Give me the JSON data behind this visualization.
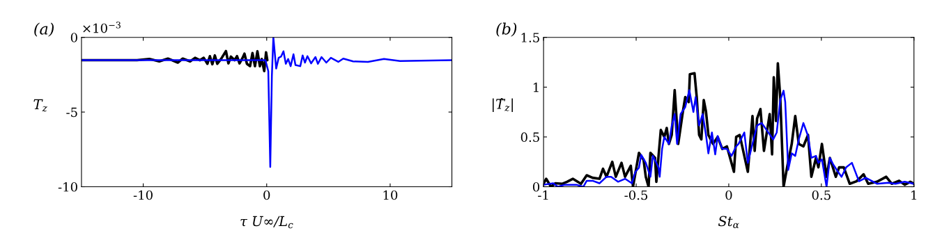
{
  "chart_data": [
    {
      "type": "line",
      "title": "(a)",
      "xlabel": "τ U∞/L$_{c}$",
      "ylabel": "T$_{z}$",
      "annotations": [
        "×10$^{−3}$"
      ],
      "xlim": [
        -15,
        15
      ],
      "xticks": [
        -10,
        0,
        10
      ],
      "ylim": [
        -10,
        0
      ],
      "yticks": [
        -10,
        -5,
        0
      ],
      "grid": false,
      "legend": false,
      "series": [
        {
          "color": "#000000",
          "x": [
            -15,
            -10.5,
            -9.5,
            -8.7,
            -8.0,
            -7.2,
            -6.8,
            -6.2,
            -5.8,
            -5.4,
            -5.1,
            -4.8,
            -4.6,
            -4.4,
            -4.2,
            -4.0,
            -3.7,
            -3.3,
            -3.1,
            -2.9,
            -2.6,
            -2.4,
            -2.2,
            -1.95,
            -1.8,
            -1.6,
            -1.35,
            -1.15,
            -0.95,
            -0.75,
            -0.55,
            -0.4,
            -0.2,
            -0.05,
            0.05
          ],
          "values": [
            -1.53,
            -1.53,
            -1.45,
            -1.61,
            -1.42,
            -1.69,
            -1.42,
            -1.61,
            -1.37,
            -1.53,
            -1.37,
            -1.77,
            -1.26,
            -1.8,
            -1.21,
            -1.77,
            -1.45,
            -0.92,
            -1.74,
            -1.29,
            -1.53,
            -1.26,
            -1.74,
            -1.37,
            -1.09,
            -1.77,
            -1.93,
            -1.05,
            -1.93,
            -0.93,
            -1.93,
            -1.45,
            -2.26,
            -1.0,
            -1.53
          ]
        },
        {
          "color": "#0000ff",
          "x": [
            -15,
            -0.1,
            0.13,
            0.29,
            0.42,
            0.54,
            0.77,
            0.97,
            1.16,
            1.36,
            1.55,
            1.74,
            1.94,
            2.17,
            2.33,
            2.72,
            2.91,
            3.1,
            3.3,
            3.6,
            3.95,
            4.15,
            4.44,
            4.83,
            5.2,
            5.8,
            6.2,
            7.0,
            8.2,
            9.5,
            10.8,
            15
          ],
          "values": [
            -1.53,
            -1.53,
            -2.26,
            -8.67,
            -2.58,
            0,
            -2.09,
            -1.37,
            -1.29,
            -0.93,
            -1.77,
            -1.45,
            -1.93,
            -1.13,
            -1.85,
            -1.93,
            -1.21,
            -1.69,
            -1.26,
            -1.74,
            -1.32,
            -1.77,
            -1.32,
            -1.69,
            -1.37,
            -1.64,
            -1.42,
            -1.61,
            -1.64,
            -1.45,
            -1.58,
            -1.53
          ]
        }
      ]
    },
    {
      "type": "line",
      "title": "(b)",
      "xlabel": "St$_{α}$",
      "ylabel": "|T̂$_{z}$|",
      "xlim": [
        -1,
        1
      ],
      "xticks": [
        -1,
        -0.5,
        0,
        0.5,
        1
      ],
      "ylim": [
        0,
        1.5
      ],
      "yticks": [
        0,
        0.5,
        1,
        1.5
      ],
      "grid": false,
      "legend": false,
      "series": [
        {
          "color": "#000000",
          "x": [
            -1.0,
            -0.986,
            -0.96,
            -0.936,
            -0.898,
            -0.873,
            -0.842,
            -0.798,
            -0.767,
            -0.735,
            -0.698,
            -0.679,
            -0.66,
            -0.629,
            -0.61,
            -0.579,
            -0.56,
            -0.529,
            -0.517,
            -0.485,
            -0.46,
            -0.448,
            -0.433,
            -0.423,
            -0.398,
            -0.391,
            -0.367,
            -0.348,
            -0.335,
            -0.323,
            -0.308,
            -0.292,
            -0.273,
            -0.248,
            -0.235,
            -0.216,
            -0.21,
            -0.185,
            -0.173,
            -0.16,
            -0.148,
            -0.135,
            -0.123,
            -0.11,
            -0.085,
            -0.06,
            -0.035,
            -0.01,
            0.028,
            0.04,
            0.059,
            0.078,
            0.103,
            0.128,
            0.14,
            0.153,
            0.171,
            0.19,
            0.221,
            0.234,
            0.243,
            0.255,
            0.265,
            0.278,
            0.296,
            0.315,
            0.34,
            0.359,
            0.378,
            0.403,
            0.428,
            0.446,
            0.471,
            0.484,
            0.503,
            0.528,
            0.546,
            0.578,
            0.596,
            0.621,
            0.653,
            0.69,
            0.728,
            0.753,
            0.8,
            0.85,
            0.88,
            0.92,
            0.95,
            0.98,
            1.0
          ],
          "values": [
            0.03,
            0.08,
            0.0,
            0.035,
            0.03,
            0.05,
            0.08,
            0.03,
            0.115,
            0.09,
            0.08,
            0.18,
            0.1,
            0.25,
            0.1,
            0.24,
            0.1,
            0.21,
            0.0,
            0.34,
            0.27,
            0.1,
            0.0,
            0.34,
            0.29,
            0.05,
            0.57,
            0.5,
            0.59,
            0.43,
            0.52,
            0.97,
            0.43,
            0.75,
            0.9,
            0.85,
            1.13,
            1.14,
            0.9,
            0.52,
            0.475,
            0.87,
            0.755,
            0.52,
            0.43,
            0.5,
            0.38,
            0.405,
            0.15,
            0.5,
            0.52,
            0.36,
            0.15,
            0.71,
            0.36,
            0.685,
            0.78,
            0.36,
            0.73,
            0.325,
            1.1,
            0.66,
            1.24,
            0.9,
            0.0,
            0.195,
            0.43,
            0.71,
            0.43,
            0.405,
            0.52,
            0.1,
            0.29,
            0.195,
            0.43,
            0.1,
            0.29,
            0.1,
            0.195,
            0.195,
            0.03,
            0.055,
            0.125,
            0.03,
            0.05,
            0.1,
            0.03,
            0.06,
            0.02,
            0.05,
            0.03
          ]
        },
        {
          "color": "#0000ff",
          "x": [
            -1.0,
            -0.948,
            -0.923,
            -0.885,
            -0.823,
            -0.785,
            -0.767,
            -0.735,
            -0.698,
            -0.66,
            -0.635,
            -0.598,
            -0.56,
            -0.523,
            -0.504,
            -0.485,
            -0.473,
            -0.448,
            -0.423,
            -0.41,
            -0.391,
            -0.379,
            -0.373,
            -0.36,
            -0.348,
            -0.323,
            -0.308,
            -0.292,
            -0.279,
            -0.26,
            -0.235,
            -0.213,
            -0.191,
            -0.179,
            -0.16,
            -0.141,
            -0.123,
            -0.11,
            -0.091,
            -0.073,
            -0.06,
            -0.035,
            -0.01,
            0.015,
            0.04,
            0.053,
            0.084,
            0.103,
            0.128,
            0.153,
            0.178,
            0.24,
            0.259,
            0.278,
            0.296,
            0.305,
            0.321,
            0.34,
            0.359,
            0.378,
            0.403,
            0.428,
            0.446,
            0.471,
            0.484,
            0.503,
            0.528,
            0.546,
            0.565,
            0.59,
            0.609,
            0.634,
            0.665,
            0.703,
            0.74,
            0.8,
            0.86,
            0.9,
            0.95,
            1.0
          ],
          "values": [
            0.02,
            0.035,
            0.0,
            0.02,
            0.02,
            0.0,
            0.06,
            0.06,
            0.035,
            0.1,
            0.1,
            0.05,
            0.08,
            0.035,
            0.15,
            0.19,
            0.32,
            0.24,
            0.1,
            0.31,
            0.24,
            0.19,
            0.1,
            0.38,
            0.5,
            0.43,
            0.61,
            0.73,
            0.43,
            0.73,
            0.8,
            0.97,
            0.75,
            0.9,
            0.615,
            0.73,
            0.52,
            0.335,
            0.545,
            0.325,
            0.51,
            0.38,
            0.38,
            0.31,
            0.405,
            0.43,
            0.545,
            0.24,
            0.43,
            0.615,
            0.64,
            0.475,
            0.545,
            0.87,
            0.965,
            0.85,
            0.17,
            0.335,
            0.31,
            0.475,
            0.64,
            0.51,
            0.29,
            0.31,
            0.24,
            0.275,
            0.0,
            0.29,
            0.22,
            0.15,
            0.1,
            0.195,
            0.24,
            0.055,
            0.09,
            0.03,
            0.04,
            0.03,
            0.05,
            0.03
          ]
        }
      ]
    }
  ]
}
